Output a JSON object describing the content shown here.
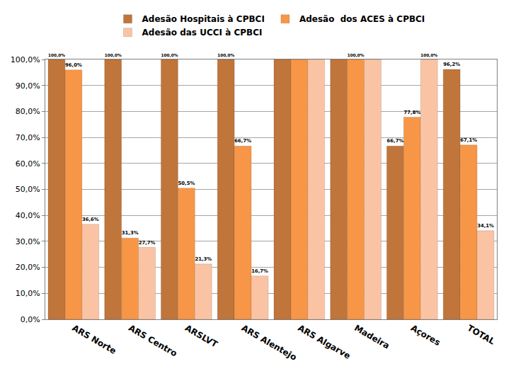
{
  "chart_data": {
    "type": "bar",
    "categories": [
      "ARS Norte",
      "ARS Centro",
      "ARSLVT",
      "ARS Alentejo",
      "ARS Algarve",
      "Madeira",
      "Açores",
      "TOTAL"
    ],
    "series": [
      {
        "name": "Adesão Hospitais à CPBCI",
        "color": "#c0753a",
        "values": [
          100,
          100,
          100,
          100,
          100,
          100,
          66.7,
          96.2
        ],
        "value_labels": [
          "100,0%",
          "100,0%",
          "100,0%",
          "100,0%",
          null,
          null,
          "66,7%",
          "96,2%"
        ]
      },
      {
        "name": "Adesão  dos ACES à CPBCI",
        "color": "#f79646",
        "values": [
          96,
          31.3,
          50.5,
          66.7,
          100,
          100,
          77.8,
          67.1
        ],
        "value_labels": [
          "96,0%",
          "31,3%",
          "50,5%",
          "66,7%",
          null,
          "100,0%",
          "77,8%",
          "67,1%"
        ]
      },
      {
        "name": "Adesão das UCCI à CPBCI",
        "color": "#fac4a4",
        "values": [
          36.6,
          27.7,
          21.3,
          16.7,
          100,
          100,
          100,
          34.1
        ],
        "value_labels": [
          "36,6%",
          "27,7%",
          "21,3%",
          "16,7%",
          null,
          null,
          "100,0%",
          "34,1%"
        ]
      }
    ],
    "ylim": [
      0,
      100
    ],
    "yticks": [
      {
        "value": 0,
        "label": "0,0%"
      },
      {
        "value": 10,
        "label": "10,0%"
      },
      {
        "value": 20,
        "label": "20,0%"
      },
      {
        "value": 30,
        "label": "30,0%"
      },
      {
        "value": 40,
        "label": "40,0%"
      },
      {
        "value": 50,
        "label": "50,0%"
      },
      {
        "value": 60,
        "label": "60,0%"
      },
      {
        "value": 70,
        "label": "70,0%"
      },
      {
        "value": 80,
        "label": "80,0%"
      },
      {
        "value": 90,
        "label": "90,0%"
      },
      {
        "value": 100,
        "label": "100,0%"
      }
    ],
    "grid": true,
    "legend": "top",
    "data_labels": true
  }
}
